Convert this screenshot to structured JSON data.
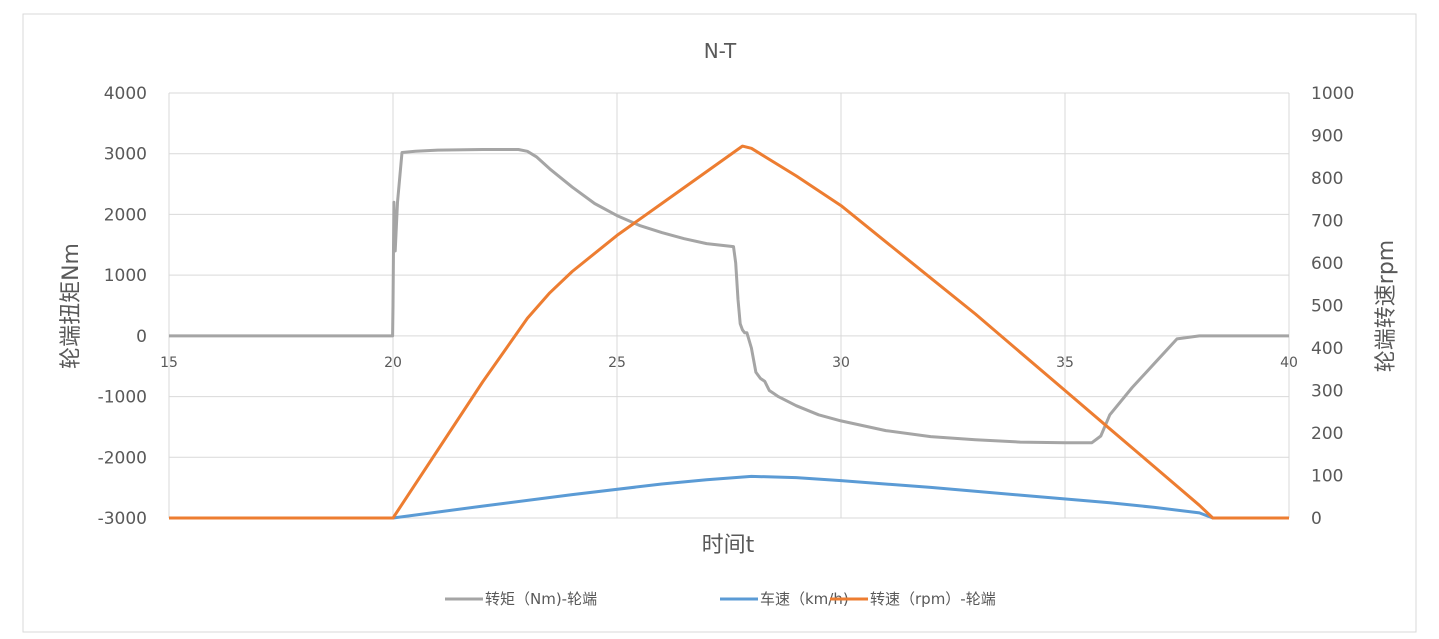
{
  "chart_data": {
    "type": "line",
    "title": "N-T",
    "xlabel": "时间t",
    "ylabel_left": "轮端扭矩Nm",
    "ylabel_right": "轮端转速rpm",
    "xlim": [
      15,
      40
    ],
    "ylim_left": [
      -3000,
      4000
    ],
    "ylim_right": [
      0,
      1000
    ],
    "x_ticks": [
      15,
      20,
      25,
      30,
      35,
      40
    ],
    "y_ticks_left": [
      -3000,
      -2000,
      -1000,
      0,
      1000,
      2000,
      3000,
      4000
    ],
    "y_ticks_right": [
      0,
      100,
      200,
      300,
      400,
      500,
      600,
      700,
      800,
      900,
      1000
    ],
    "grid": true,
    "legend_position": "bottom",
    "colors": {
      "torque": "#a5a5a5",
      "speed_kmh": "#5b9bd5",
      "speed_rpm": "#ed7d31",
      "grid": "#d9d9d9",
      "frame": "#d9d9d9"
    },
    "series": [
      {
        "name": "转矩（Nm)-轮端",
        "axis": "left",
        "x": [
          15,
          19.99,
          20.0,
          20.02,
          20.05,
          20.1,
          20.2,
          20.5,
          21.0,
          22.0,
          22.8,
          23.0,
          23.2,
          23.5,
          24.0,
          24.5,
          25.0,
          25.5,
          26.0,
          26.5,
          27.0,
          27.6,
          27.65,
          27.7,
          27.75,
          27.8,
          27.85,
          27.9,
          28.0,
          28.1,
          28.15,
          28.2,
          28.3,
          28.4,
          28.5,
          28.6,
          29.0,
          29.5,
          30.0,
          31.0,
          32.0,
          33.0,
          34.0,
          35.0,
          35.6,
          35.8,
          36.0,
          36.5,
          37.0,
          37.5,
          38.0,
          40.0
        ],
        "y": [
          0,
          0,
          500,
          2200,
          1400,
          2200,
          3020,
          3040,
          3060,
          3070,
          3070,
          3040,
          2950,
          2750,
          2450,
          2180,
          1980,
          1820,
          1700,
          1600,
          1520,
          1470,
          1200,
          600,
          200,
          100,
          50,
          50,
          -200,
          -600,
          -650,
          -700,
          -750,
          -900,
          -950,
          -1000,
          -1150,
          -1300,
          -1400,
          -1560,
          -1660,
          -1710,
          -1750,
          -1760,
          -1760,
          -1650,
          -1300,
          -850,
          -450,
          -50,
          0,
          0
        ]
      },
      {
        "name": "车速（km/h)",
        "axis": "right",
        "x": [
          15,
          20.0,
          22.0,
          24.0,
          26.0,
          27.0,
          28.0,
          29.0,
          30.0,
          32.0,
          34.0,
          36.0,
          37.0,
          38.0,
          38.3,
          40.0
        ],
        "y": [
          0,
          0,
          28,
          55,
          80,
          90,
          98,
          95,
          88,
          72,
          54,
          36,
          25,
          12,
          0,
          0
        ]
      },
      {
        "name": "转速（rpm）-轮端",
        "axis": "right",
        "x": [
          15,
          20.0,
          21.0,
          22.0,
          23.0,
          23.5,
          24.0,
          25.0,
          26.0,
          27.0,
          27.8,
          28.0,
          29.0,
          30.0,
          31.0,
          32.0,
          33.0,
          34.0,
          35.0,
          36.0,
          37.0,
          38.0,
          38.3,
          40.0
        ],
        "y": [
          0,
          0,
          160,
          320,
          470,
          530,
          580,
          665,
          740,
          815,
          875,
          870,
          805,
          735,
          650,
          565,
          480,
          390,
          300,
          210,
          120,
          30,
          0,
          0
        ]
      }
    ]
  }
}
